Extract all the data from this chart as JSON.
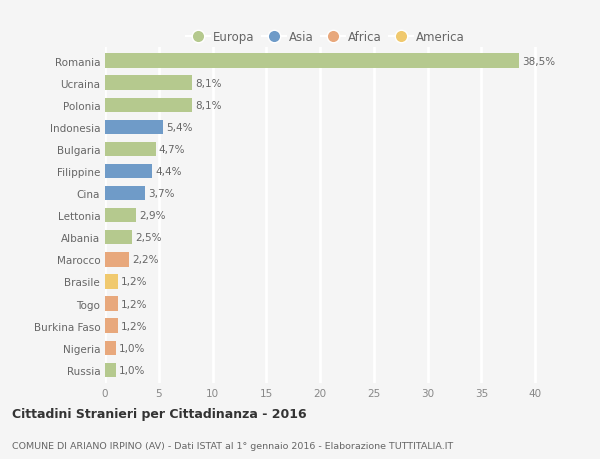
{
  "categories": [
    "Romania",
    "Ucraina",
    "Polonia",
    "Indonesia",
    "Bulgaria",
    "Filippine",
    "Cina",
    "Lettonia",
    "Albania",
    "Marocco",
    "Brasile",
    "Togo",
    "Burkina Faso",
    "Nigeria",
    "Russia"
  ],
  "values": [
    38.5,
    8.1,
    8.1,
    5.4,
    4.7,
    4.4,
    3.7,
    2.9,
    2.5,
    2.2,
    1.2,
    1.2,
    1.2,
    1.0,
    1.0
  ],
  "continents": [
    "Europa",
    "Europa",
    "Europa",
    "Asia",
    "Europa",
    "Asia",
    "Asia",
    "Europa",
    "Europa",
    "Africa",
    "America",
    "Africa",
    "Africa",
    "Africa",
    "Europa"
  ],
  "colors": {
    "Europa": "#b5c98e",
    "Asia": "#6f9bc8",
    "Africa": "#e8a87c",
    "America": "#f0c96e"
  },
  "legend_order": [
    "Europa",
    "Asia",
    "Africa",
    "America"
  ],
  "title": "Cittadini Stranieri per Cittadinanza - 2016",
  "subtitle": "COMUNE DI ARIANO IRPINO (AV) - Dati ISTAT al 1° gennaio 2016 - Elaborazione TUTTITALIA.IT",
  "xlim": [
    0,
    41
  ],
  "xticks": [
    0,
    5,
    10,
    15,
    20,
    25,
    30,
    35,
    40
  ],
  "bg_color": "#f5f5f5",
  "grid_color": "#ffffff",
  "bar_height": 0.65
}
